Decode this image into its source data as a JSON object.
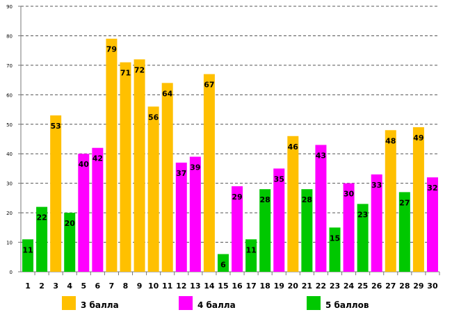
{
  "chart_data": {
    "type": "bar",
    "categories": [
      "1",
      "2",
      "3",
      "4",
      "5",
      "6",
      "7",
      "8",
      "9",
      "10",
      "11",
      "12",
      "13",
      "14",
      "15",
      "16",
      "17",
      "18",
      "19",
      "20",
      "21",
      "22",
      "23",
      "24",
      "25",
      "26",
      "27",
      "28",
      "29",
      "30"
    ],
    "values": [
      11,
      22,
      53,
      20,
      40,
      42,
      79,
      71,
      72,
      56,
      64,
      37,
      39,
      67,
      6,
      29,
      11,
      28,
      35,
      46,
      28,
      43,
      15,
      30,
      23,
      33,
      48,
      27,
      49,
      32
    ],
    "groups": [
      "5",
      "5",
      "3",
      "5",
      "4",
      "4",
      "3",
      "3",
      "3",
      "3",
      "3",
      "4",
      "4",
      "3",
      "5",
      "4",
      "5",
      "5",
      "4",
      "3",
      "5",
      "4",
      "5",
      "4",
      "5",
      "4",
      "3",
      "5",
      "3",
      "4"
    ],
    "legend": [
      {
        "key": "3",
        "label": "3 балла",
        "color": "#FFC000"
      },
      {
        "key": "4",
        "label": "4 балла",
        "color": "#FF00FF"
      },
      {
        "key": "5",
        "label": "5 баллов",
        "color": "#00C800"
      }
    ],
    "legend_position": "bottom",
    "ylim": [
      0,
      90
    ],
    "yticks": [
      0,
      10,
      20,
      30,
      40,
      50,
      60,
      70,
      80,
      90
    ],
    "grid": true,
    "xlabel": "",
    "ylabel": "",
    "title": ""
  }
}
